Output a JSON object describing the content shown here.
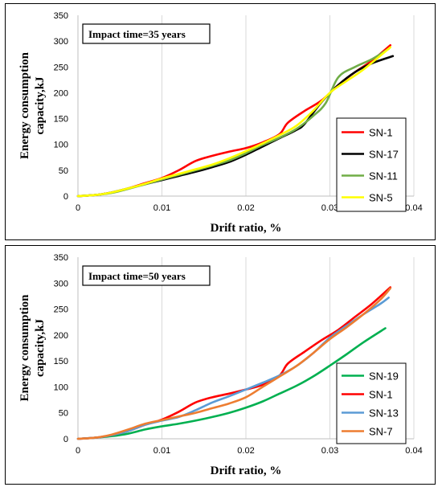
{
  "chart_data": [
    {
      "type": "line",
      "title": "",
      "annotation": "Impact time=35 years",
      "xlabel": "Drift ratio, %",
      "ylabel_lines": [
        "Energy consumption",
        "capacity,kJ"
      ],
      "xlim": [
        0,
        0.04
      ],
      "ylim": [
        0,
        350
      ],
      "x_ticks": [
        "0",
        "0.01",
        "0.02",
        "0.03",
        "0.04"
      ],
      "y_ticks": [
        "0",
        "50",
        "100",
        "150",
        "200",
        "250",
        "300",
        "350"
      ],
      "grid": "vertical",
      "legend_position": "bottom-right",
      "series": [
        {
          "name": "SN-1",
          "color": "#ff0000",
          "points": [
            [
              0,
              0
            ],
            [
              0.002,
              2
            ],
            [
              0.004,
              7
            ],
            [
              0.006,
              15
            ],
            [
              0.008,
              25
            ],
            [
              0.01,
              35
            ],
            [
              0.012,
              50
            ],
            [
              0.014,
              68
            ],
            [
              0.016,
              78
            ],
            [
              0.018,
              86
            ],
            [
              0.02,
              93
            ],
            [
              0.022,
              104
            ],
            [
              0.024,
              120
            ],
            [
              0.025,
              142
            ],
            [
              0.027,
              165
            ],
            [
              0.029,
              185
            ],
            [
              0.031,
              215
            ],
            [
              0.033,
              240
            ],
            [
              0.035,
              262
            ],
            [
              0.0372,
              292
            ]
          ]
        },
        {
          "name": "SN-17",
          "color": "#000000",
          "points": [
            [
              0,
              0
            ],
            [
              0.002,
              2
            ],
            [
              0.004,
              7
            ],
            [
              0.006,
              15
            ],
            [
              0.008,
              23
            ],
            [
              0.01,
              31
            ],
            [
              0.012,
              39
            ],
            [
              0.014,
              47
            ],
            [
              0.016,
              56
            ],
            [
              0.018,
              66
            ],
            [
              0.02,
              80
            ],
            [
              0.022,
              96
            ],
            [
              0.024,
              112
            ],
            [
              0.026,
              128
            ],
            [
              0.027,
              140
            ],
            [
              0.029,
              182
            ],
            [
              0.031,
              215
            ],
            [
              0.033,
              240
            ],
            [
              0.035,
              257
            ],
            [
              0.0375,
              271
            ]
          ]
        },
        {
          "name": "SN-11",
          "color": "#70ad47",
          "points": [
            [
              0,
              0
            ],
            [
              0.002,
              2
            ],
            [
              0.004,
              6
            ],
            [
              0.006,
              14
            ],
            [
              0.008,
              23
            ],
            [
              0.01,
              32
            ],
            [
              0.012,
              41
            ],
            [
              0.014,
              50
            ],
            [
              0.016,
              59
            ],
            [
              0.018,
              69
            ],
            [
              0.02,
              83
            ],
            [
              0.022,
              99
            ],
            [
              0.024,
              113
            ],
            [
              0.026,
              130
            ],
            [
              0.028,
              155
            ],
            [
              0.0295,
              180
            ],
            [
              0.031,
              230
            ],
            [
              0.033,
              250
            ],
            [
              0.035,
              265
            ],
            [
              0.037,
              285
            ]
          ]
        },
        {
          "name": "SN-5",
          "color": "#ffff00",
          "points": [
            [
              0,
              0
            ],
            [
              0.002,
              2
            ],
            [
              0.004,
              7
            ],
            [
              0.006,
              15
            ],
            [
              0.008,
              24
            ],
            [
              0.01,
              34
            ],
            [
              0.012,
              43
            ],
            [
              0.014,
              52
            ],
            [
              0.016,
              61
            ],
            [
              0.018,
              73
            ],
            [
              0.02,
              87
            ],
            [
              0.022,
              102
            ],
            [
              0.024,
              118
            ],
            [
              0.026,
              136
            ],
            [
              0.028,
              165
            ],
            [
              0.03,
              200
            ],
            [
              0.032,
              223
            ],
            [
              0.034,
              245
            ],
            [
              0.0372,
              288
            ]
          ]
        }
      ]
    },
    {
      "type": "line",
      "title": "",
      "annotation": "Impact time=50 years",
      "xlabel": "Drift ratio, %",
      "ylabel_lines": [
        "Energy consumption",
        "capacity,kJ"
      ],
      "xlim": [
        0,
        0.04
      ],
      "ylim": [
        0,
        350
      ],
      "x_ticks": [
        "0",
        "0.01",
        "0.02",
        "0.03",
        "0.04"
      ],
      "y_ticks": [
        "0",
        "50",
        "100",
        "150",
        "200",
        "250",
        "300",
        "350"
      ],
      "grid": "vertical",
      "legend_position": "bottom-right",
      "series": [
        {
          "name": "SN-19",
          "color": "#00b050",
          "points": [
            [
              0,
              0
            ],
            [
              0.002,
              2
            ],
            [
              0.004,
              5
            ],
            [
              0.006,
              10
            ],
            [
              0.008,
              18
            ],
            [
              0.01,
              24
            ],
            [
              0.012,
              29
            ],
            [
              0.014,
              35
            ],
            [
              0.016,
              42
            ],
            [
              0.018,
              50
            ],
            [
              0.02,
              60
            ],
            [
              0.022,
              72
            ],
            [
              0.024,
              87
            ],
            [
              0.026,
              102
            ],
            [
              0.028,
              120
            ],
            [
              0.03,
              141
            ],
            [
              0.032,
              163
            ],
            [
              0.034,
              186
            ],
            [
              0.0366,
              213
            ]
          ]
        },
        {
          "name": "SN-1",
          "color": "#ff0000",
          "points": [
            [
              0,
              0
            ],
            [
              0.002,
              2
            ],
            [
              0.004,
              7
            ],
            [
              0.006,
              15
            ],
            [
              0.008,
              27
            ],
            [
              0.01,
              37
            ],
            [
              0.012,
              52
            ],
            [
              0.014,
              70
            ],
            [
              0.016,
              80
            ],
            [
              0.018,
              87
            ],
            [
              0.02,
              95
            ],
            [
              0.022,
              104
            ],
            [
              0.024,
              122
            ],
            [
              0.025,
              145
            ],
            [
              0.027,
              168
            ],
            [
              0.029,
              190
            ],
            [
              0.031,
              210
            ],
            [
              0.033,
              235
            ],
            [
              0.035,
              260
            ],
            [
              0.0372,
              292
            ]
          ]
        },
        {
          "name": "SN-13",
          "color": "#5b9bd5",
          "points": [
            [
              0,
              0
            ],
            [
              0.002,
              2
            ],
            [
              0.004,
              7
            ],
            [
              0.006,
              15
            ],
            [
              0.008,
              27
            ],
            [
              0.01,
              35
            ],
            [
              0.012,
              42
            ],
            [
              0.014,
              55
            ],
            [
              0.016,
              70
            ],
            [
              0.018,
              82
            ],
            [
              0.02,
              95
            ],
            [
              0.022,
              108
            ],
            [
              0.024,
              122
            ],
            [
              0.026,
              140
            ],
            [
              0.028,
              165
            ],
            [
              0.03,
              195
            ],
            [
              0.032,
              218
            ],
            [
              0.034,
              240
            ],
            [
              0.036,
              260
            ],
            [
              0.037,
              272
            ]
          ]
        },
        {
          "name": "SN-7",
          "color": "#ed7d31",
          "points": [
            [
              0,
              0
            ],
            [
              0.002,
              2
            ],
            [
              0.004,
              8
            ],
            [
              0.006,
              18
            ],
            [
              0.008,
              29
            ],
            [
              0.01,
              36
            ],
            [
              0.012,
              43
            ],
            [
              0.014,
              50
            ],
            [
              0.016,
              59
            ],
            [
              0.018,
              68
            ],
            [
              0.02,
              80
            ],
            [
              0.022,
              100
            ],
            [
              0.024,
              120
            ],
            [
              0.026,
              140
            ],
            [
              0.028,
              165
            ],
            [
              0.03,
              192
            ],
            [
              0.032,
              215
            ],
            [
              0.034,
              240
            ],
            [
              0.036,
              268
            ],
            [
              0.0372,
              290
            ]
          ]
        }
      ]
    }
  ]
}
